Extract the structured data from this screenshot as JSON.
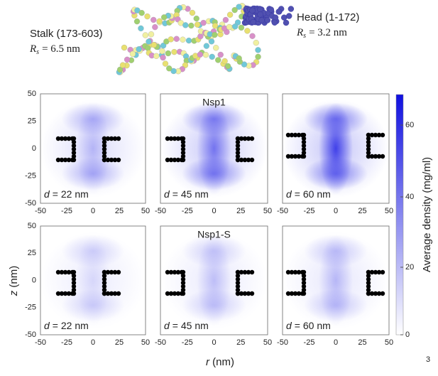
{
  "stalk": {
    "name": "Stalk (173-603)",
    "symbol": "R",
    "subscript": "s",
    "value": "= 6.5 nm"
  },
  "head": {
    "name": "Head (1-172)",
    "symbol": "R",
    "subscript": "s",
    "value": "= 3.2 nm"
  },
  "rows": [
    {
      "title": "Nsp1",
      "labels": [
        "= 22 nm",
        "= 45 nm",
        "= 60 nm"
      ]
    },
    {
      "title": "Nsp1-S",
      "labels": [
        "= 22 nm",
        "= 45 nm",
        "= 60 nm"
      ]
    }
  ],
  "d_symbol": "d",
  "x_ticks": [
    "-50",
    "-25",
    "0",
    "25",
    "50"
  ],
  "y_ticks": [
    "50",
    "25",
    "0",
    "-25",
    "-50"
  ],
  "x_label": {
    "symbol": "r",
    "unit": "(nm)"
  },
  "y_label": {
    "symbol": "z",
    "unit": "(nm)"
  },
  "colorbar": {
    "label": "Average density (mg/ml)",
    "ticks": [
      "60",
      "40",
      "20",
      "0"
    ]
  },
  "page_number": "3"
}
